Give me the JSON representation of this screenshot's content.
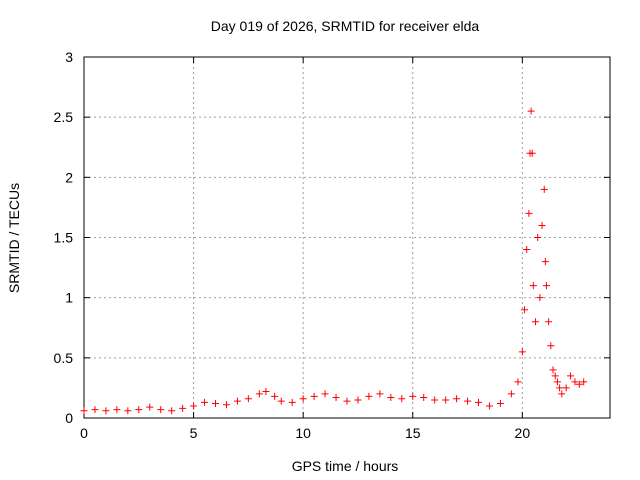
{
  "chart_data": {
    "type": "scatter",
    "title": "Day 019 of 2026, SRMTID for receiver elda",
    "xlabel": "GPS time / hours",
    "ylabel": "SRMTID / TECUs",
    "xlim": [
      0,
      24
    ],
    "ylim": [
      0,
      3
    ],
    "x_ticks": [
      0,
      5,
      10,
      15,
      20
    ],
    "x_tick_labels": [
      "0",
      "5",
      "10",
      "15",
      "20"
    ],
    "y_ticks": [
      0,
      0.5,
      1,
      1.5,
      2,
      2.5,
      3
    ],
    "y_tick_labels": [
      "0",
      "0.5",
      "1",
      "1.5",
      "2",
      "2.5",
      "3"
    ],
    "grid": true,
    "marker": "+",
    "series": [
      {
        "name": "SRMTID",
        "color": "#ff0000",
        "x": [
          0.0,
          0.5,
          1.0,
          1.5,
          2.0,
          2.5,
          3.0,
          3.5,
          4.0,
          4.5,
          5.0,
          5.5,
          6.0,
          6.5,
          7.0,
          7.5,
          8.0,
          8.3,
          8.7,
          9.0,
          9.5,
          10.0,
          10.5,
          11.0,
          11.5,
          12.0,
          12.5,
          13.0,
          13.5,
          14.0,
          14.5,
          15.0,
          15.5,
          16.0,
          16.5,
          17.0,
          17.5,
          18.0,
          18.5,
          19.0,
          19.5,
          19.8,
          20.0,
          20.1,
          20.2,
          20.3,
          20.35,
          20.4,
          20.45,
          20.5,
          20.6,
          20.7,
          20.8,
          20.9,
          21.0,
          21.05,
          21.1,
          21.2,
          21.3,
          21.4,
          21.5,
          21.6,
          21.7,
          21.8,
          22.0,
          22.2,
          22.4,
          22.6,
          22.8
        ],
        "y": [
          0.06,
          0.07,
          0.06,
          0.07,
          0.06,
          0.07,
          0.09,
          0.07,
          0.06,
          0.08,
          0.1,
          0.13,
          0.12,
          0.11,
          0.14,
          0.16,
          0.2,
          0.22,
          0.18,
          0.14,
          0.13,
          0.16,
          0.18,
          0.2,
          0.17,
          0.14,
          0.15,
          0.18,
          0.2,
          0.17,
          0.16,
          0.18,
          0.17,
          0.15,
          0.15,
          0.16,
          0.14,
          0.13,
          0.1,
          0.12,
          0.2,
          0.3,
          0.55,
          0.9,
          1.4,
          1.7,
          2.2,
          2.55,
          2.2,
          1.1,
          0.8,
          1.5,
          1.0,
          1.6,
          1.9,
          1.3,
          1.1,
          0.8,
          0.6,
          0.4,
          0.35,
          0.3,
          0.25,
          0.2,
          0.25,
          0.35,
          0.3,
          0.28,
          0.3
        ]
      }
    ]
  }
}
